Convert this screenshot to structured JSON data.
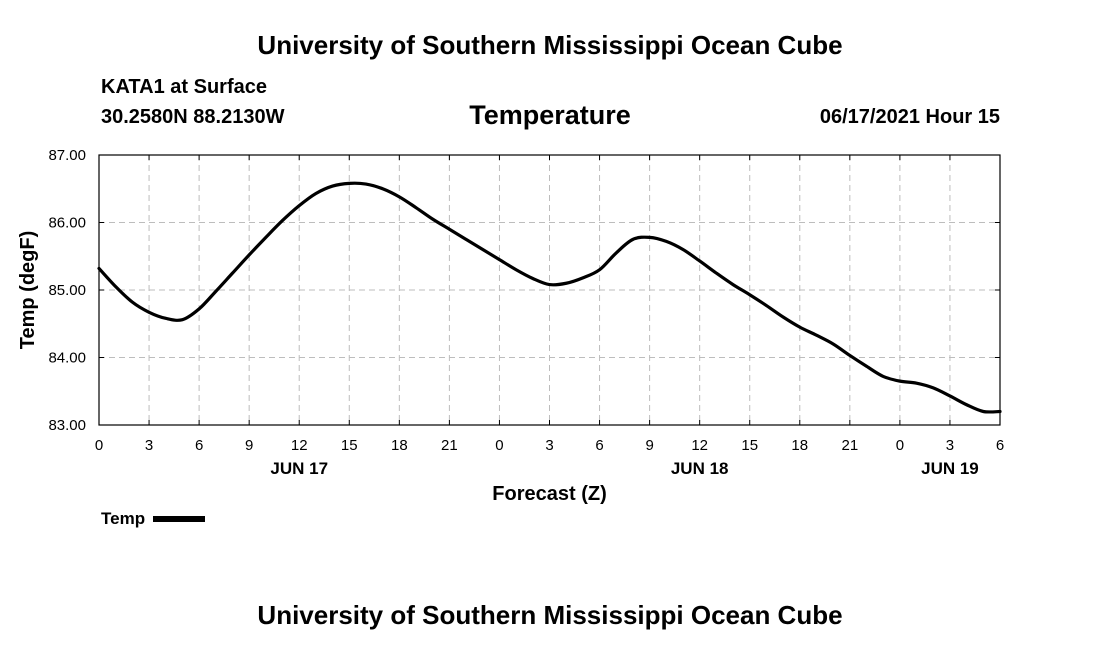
{
  "header": {
    "title": "University of Southern Mississippi Ocean Cube",
    "station": "KATA1 at Surface",
    "coords": "30.2580N  88.2130W",
    "chart_title": "Temperature",
    "datetime": "06/17/2021 Hour 15"
  },
  "footer": {
    "title": "University of Southern Mississippi Ocean Cube"
  },
  "legend": {
    "label": "Temp"
  },
  "chart_data": {
    "type": "line",
    "title": "Temperature",
    "xlabel": "Forecast (Z)",
    "ylabel": "Temp (degF)",
    "xlim": [
      0,
      54
    ],
    "ylim": [
      83,
      87
    ],
    "yticks": [
      83,
      84,
      85,
      86,
      87
    ],
    "ytick_labels": [
      "83.00",
      "84.00",
      "85.00",
      "86.00",
      "87.00"
    ],
    "xticks": [
      0,
      3,
      6,
      9,
      12,
      15,
      18,
      21,
      24,
      27,
      30,
      33,
      36,
      39,
      42,
      45,
      48,
      51,
      54
    ],
    "xtick_labels": [
      "0",
      "3",
      "6",
      "9",
      "12",
      "15",
      "18",
      "21",
      "0",
      "3",
      "6",
      "9",
      "12",
      "15",
      "18",
      "21",
      "0",
      "3",
      "6"
    ],
    "date_labels": [
      {
        "hour": 12,
        "label": "JUN 17"
      },
      {
        "hour": 36,
        "label": "JUN 18"
      },
      {
        "hour": 51,
        "label": "JUN 19"
      }
    ],
    "grid": true,
    "legend_position": "bottom-left",
    "series": [
      {
        "name": "Temp",
        "color": "#000000",
        "x": [
          0,
          1,
          2,
          3,
          4,
          5,
          6,
          7,
          8,
          9,
          10,
          11,
          12,
          13,
          14,
          15,
          16,
          17,
          18,
          19,
          20,
          21,
          22,
          23,
          24,
          25,
          26,
          27,
          28,
          29,
          30,
          31,
          32,
          33,
          34,
          35,
          36,
          37,
          38,
          39,
          40,
          41,
          42,
          43,
          44,
          45,
          46,
          47,
          48,
          49,
          50,
          51,
          52,
          53,
          54
        ],
        "values": [
          85.32,
          85.05,
          84.82,
          84.67,
          84.58,
          84.56,
          84.72,
          84.98,
          85.25,
          85.52,
          85.78,
          86.03,
          86.25,
          86.43,
          86.54,
          86.58,
          86.57,
          86.5,
          86.38,
          86.22,
          86.05,
          85.9,
          85.75,
          85.6,
          85.45,
          85.3,
          85.17,
          85.08,
          85.1,
          85.18,
          85.3,
          85.55,
          85.75,
          85.78,
          85.72,
          85.6,
          85.43,
          85.25,
          85.08,
          84.93,
          84.77,
          84.6,
          84.45,
          84.33,
          84.2,
          84.03,
          83.87,
          83.72,
          83.65,
          83.62,
          83.55,
          83.43,
          83.3,
          83.2,
          83.2
        ]
      }
    ]
  }
}
